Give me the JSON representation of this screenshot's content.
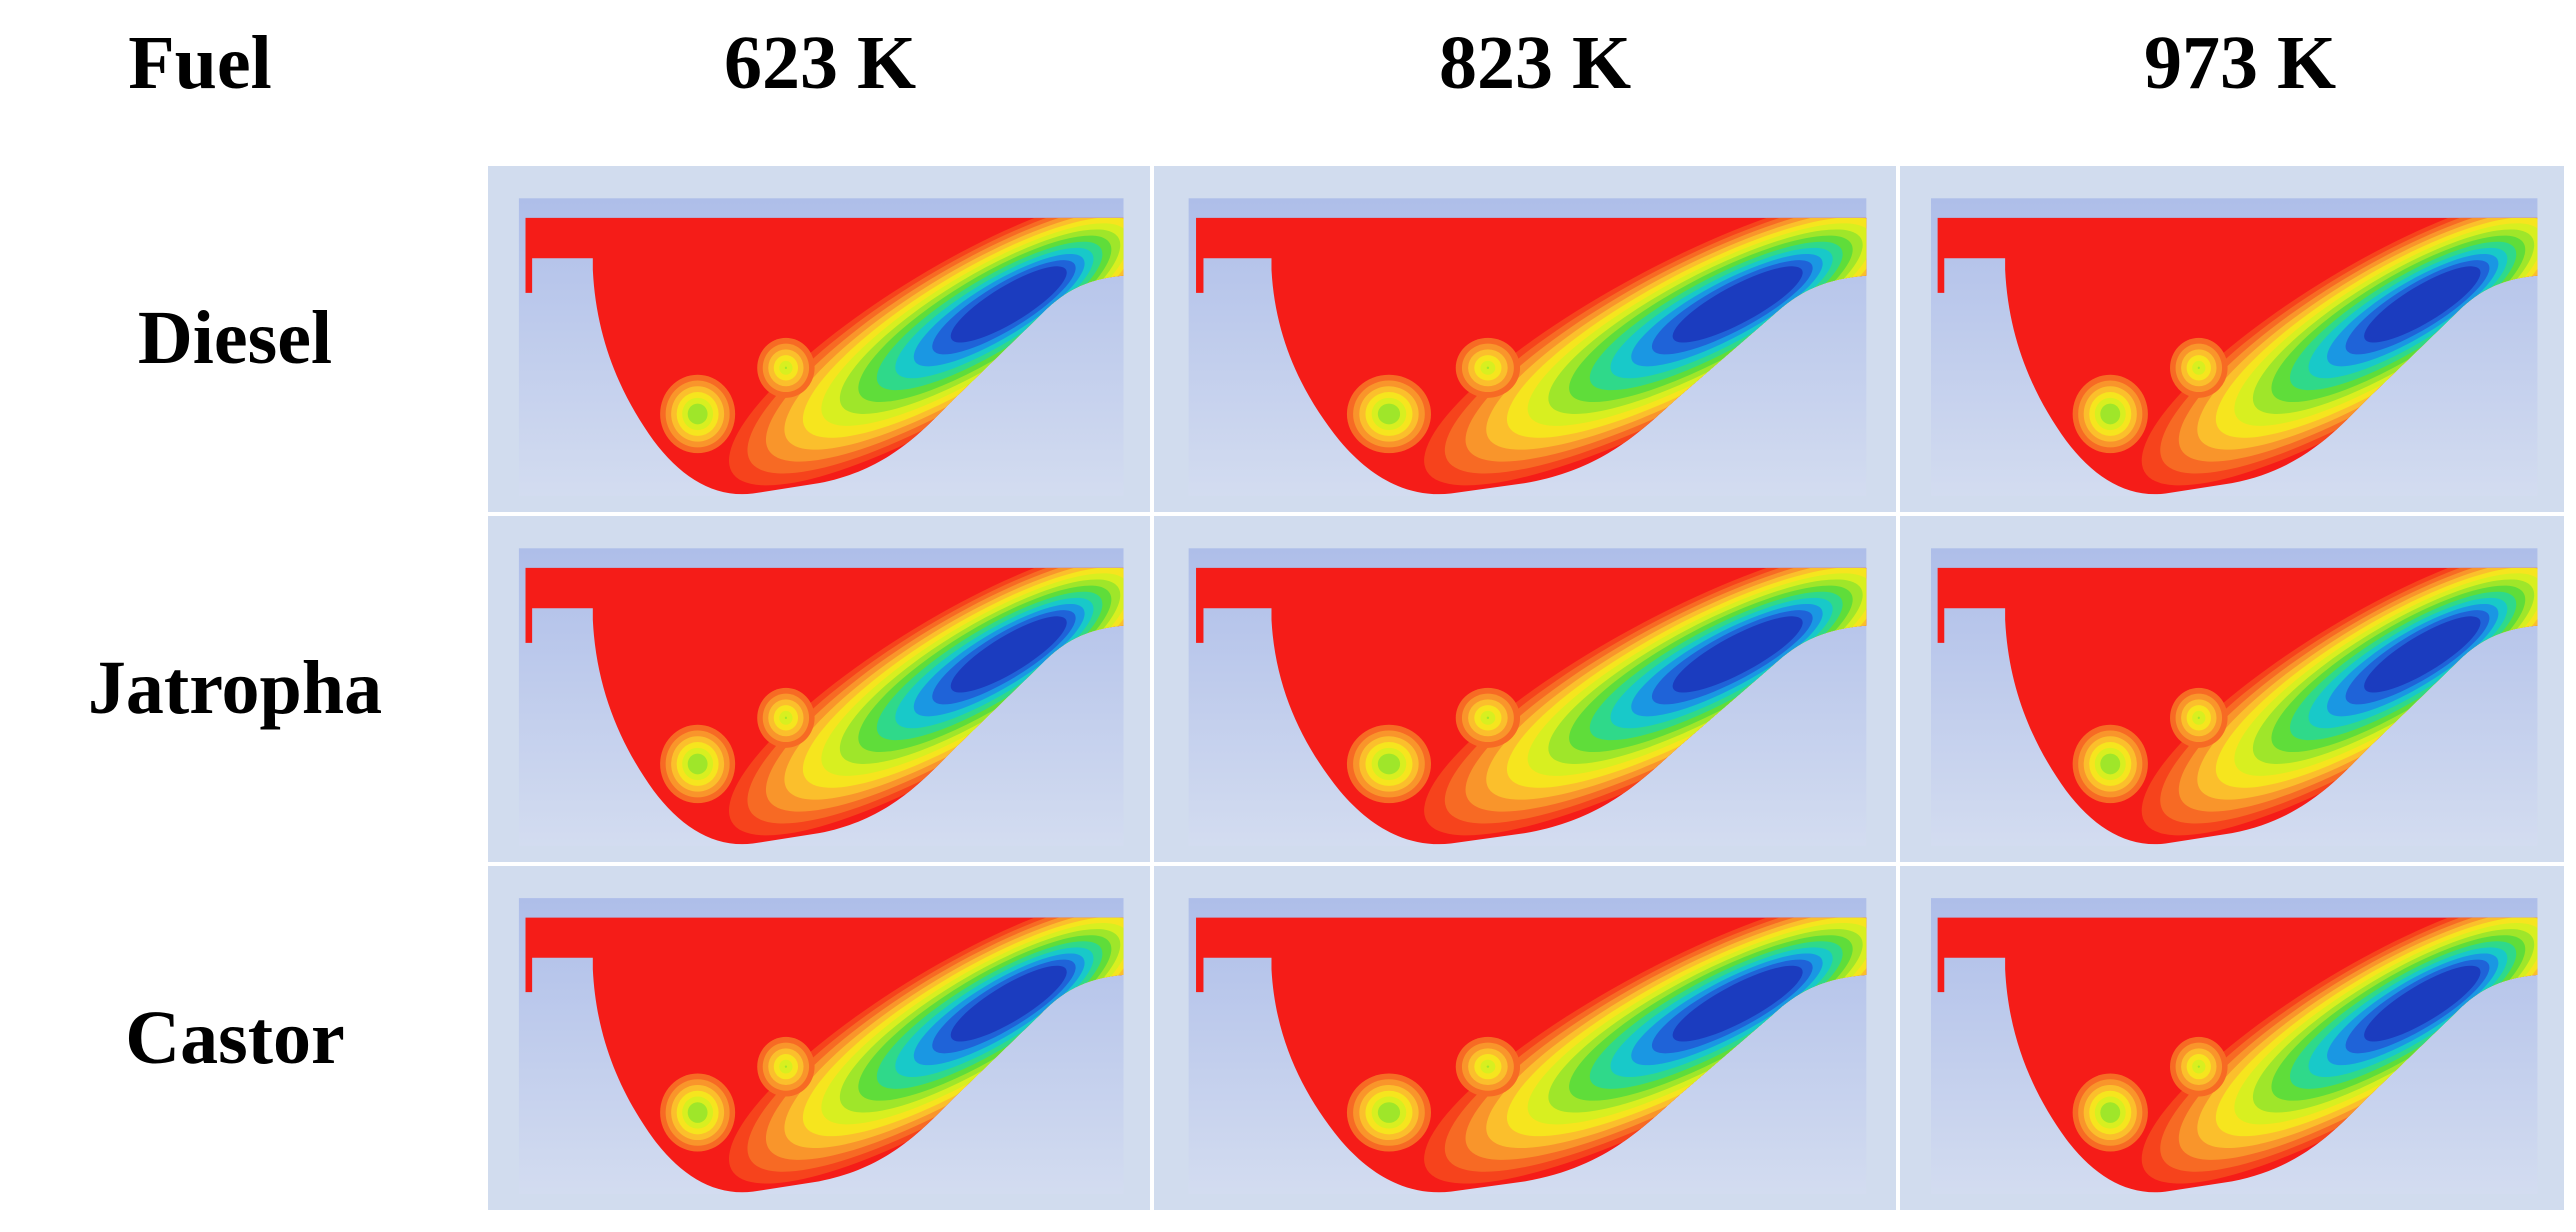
{
  "header": {
    "fuel_label": "Fuel",
    "temperatures": [
      "623 K",
      "823 K",
      "973 K"
    ]
  },
  "rows": [
    {
      "fuel": "Diesel"
    },
    {
      "fuel": "Jatropha"
    },
    {
      "fuel": "Castor"
    }
  ],
  "contour_colors": {
    "background": "#d1dcee",
    "base": "#f51c18",
    "bands": [
      "#f6431c",
      "#f76a24",
      "#f9952b",
      "#fbbf2c",
      "#f6e51e",
      "#d8ef20",
      "#9fe62a",
      "#5fdd3a",
      "#2fd98a",
      "#18c9c9",
      "#1a97e3",
      "#1f63d8",
      "#1b3cbf"
    ]
  }
}
